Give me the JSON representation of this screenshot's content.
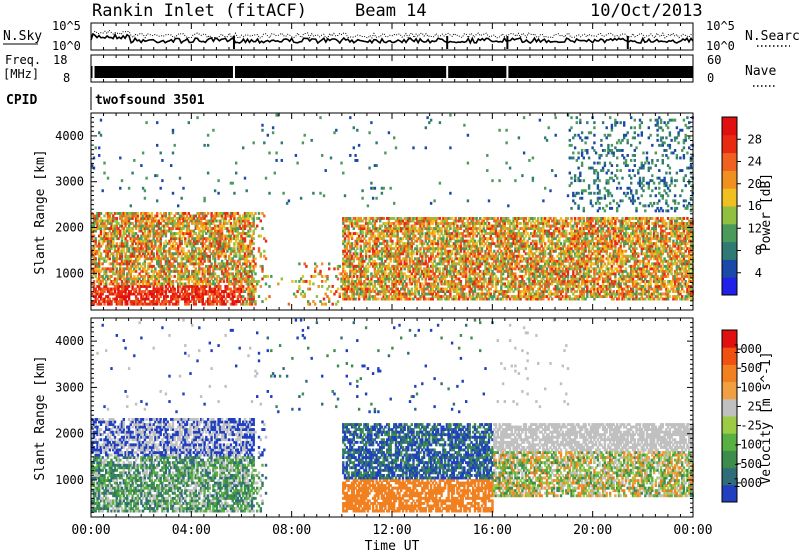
{
  "header": {
    "station": "Rankin Inlet (fitACF)",
    "beam": "Beam 14",
    "date": "10/Oct/2013"
  },
  "noise_panel": {
    "left_label": "N.Sky",
    "right_label": "N.Search",
    "left_ticks": [
      "10^5",
      "10^0"
    ],
    "right_ticks": [
      "10^5",
      "10^0"
    ]
  },
  "freq_panel": {
    "left_label_1": "Freq.",
    "left_label_2": "[MHz]",
    "right_label": "Nave",
    "left_ticks": [
      "18",
      "8"
    ],
    "right_ticks": [
      "60",
      "0"
    ]
  },
  "cpid_panel": {
    "label": "CPID",
    "value": "twofsound 3501"
  },
  "x_axis": {
    "title": "Time UT",
    "ticks": [
      "00:00",
      "04:00",
      "08:00",
      "12:00",
      "16:00",
      "20:00",
      "00:00"
    ]
  },
  "chart_data": [
    {
      "type": "heatmap",
      "name": "power",
      "ylabel": "Slant Range [km]",
      "yticks": [
        "1000",
        "2000",
        "3000",
        "4000"
      ],
      "ylim": [
        200,
        4500
      ],
      "xlim": [
        "00:00",
        "24:00"
      ],
      "colorbar": {
        "label": "Power [dB]",
        "ticks": [
          "28",
          "24",
          "20",
          "16",
          "12",
          "8",
          "4"
        ],
        "colors": [
          "#2020e8",
          "#1a4aa8",
          "#2f7a74",
          "#4a9a5c",
          "#8fc040",
          "#f0c020",
          "#f09020",
          "#f06020",
          "#e82a10",
          "#e01010"
        ]
      },
      "features": [
        {
          "time_h": [
            0,
            7
          ],
          "range_km": [
            300,
            2300
          ],
          "level": "high"
        },
        {
          "time_h": [
            7,
            10
          ],
          "range_km": [
            300,
            1200
          ],
          "level": "low"
        },
        {
          "time_h": [
            10,
            24
          ],
          "range_km": [
            400,
            2200
          ],
          "level": "high"
        },
        {
          "time_h": [
            19,
            24
          ],
          "range_km": [
            2300,
            4400
          ],
          "level": "low"
        }
      ]
    },
    {
      "type": "heatmap",
      "name": "velocity",
      "ylabel": "Slant Range [km]",
      "yticks": [
        "1000",
        "2000",
        "3000",
        "4000"
      ],
      "ylim": [
        200,
        4500
      ],
      "xlim": [
        "00:00",
        "24:00"
      ],
      "colorbar": {
        "label": "Velocity [m s^-1]",
        "ticks": [
          "1000",
          "500",
          "100",
          "25",
          "-25",
          "-100",
          "-500",
          "-1000"
        ],
        "colors": [
          "#2040c0",
          "#2f6e78",
          "#3c8c4c",
          "#58b040",
          "#9ccc44",
          "#c0c0c0",
          "#f0a040",
          "#f08020",
          "#f05010",
          "#e01010"
        ]
      },
      "features": [
        {
          "time_h": [
            0,
            7
          ],
          "range_km": [
            300,
            2300
          ],
          "dominant": "green-blue"
        },
        {
          "time_h": [
            10,
            16
          ],
          "range_km": [
            500,
            2200
          ],
          "dominant": "blue"
        },
        {
          "time_h": [
            10,
            16
          ],
          "range_km": [
            300,
            1000
          ],
          "dominant": "orange"
        },
        {
          "time_h": [
            16,
            24
          ],
          "range_km": [
            600,
            2200
          ],
          "dominant": "green-grey-orange"
        }
      ]
    }
  ]
}
